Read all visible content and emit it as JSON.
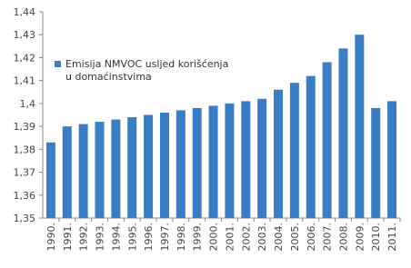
{
  "chart_data": {
    "type": "bar",
    "categories": [
      "1990.",
      "1991.",
      "1992.",
      "1993.",
      "1994.",
      "1995.",
      "1996.",
      "1997.",
      "1998.",
      "1999.",
      "2000.",
      "2001.",
      "2002.",
      "2003.",
      "2004.",
      "2005.",
      "2006.",
      "2007.",
      "2008.",
      "2009.",
      "2010.",
      "2011."
    ],
    "series": [
      {
        "name": "Emisija NMVOC usljed korišćenja u domaćinstvima",
        "color": "#3b7dc4",
        "values": [
          1.383,
          1.39,
          1.391,
          1.392,
          1.393,
          1.394,
          1.395,
          1.396,
          1.397,
          1.398,
          1.399,
          1.4,
          1.401,
          1.402,
          1.406,
          1.409,
          1.412,
          1.418,
          1.424,
          1.43,
          1.398,
          1.401
        ]
      }
    ],
    "ylim": [
      1.35,
      1.44
    ],
    "yticks": [
      {
        "value": 1.35,
        "label": "1,35"
      },
      {
        "value": 1.36,
        "label": "1,36"
      },
      {
        "value": 1.37,
        "label": "1,37"
      },
      {
        "value": 1.38,
        "label": "1,38"
      },
      {
        "value": 1.39,
        "label": "1,39"
      },
      {
        "value": 1.4,
        "label": "1,4"
      },
      {
        "value": 1.41,
        "label": "1,41"
      },
      {
        "value": 1.42,
        "label": "1,42"
      },
      {
        "value": 1.43,
        "label": "1,43"
      },
      {
        "value": 1.44,
        "label": "1,44"
      }
    ]
  }
}
